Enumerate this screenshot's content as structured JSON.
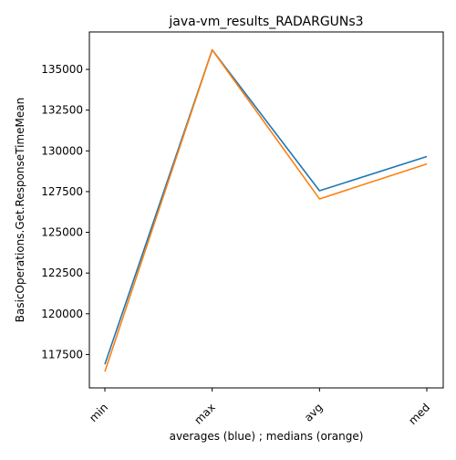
{
  "chart_data": {
    "type": "line",
    "title": "java-vm_results_RADARGUNs3",
    "xlabel": "averages (blue) ; medians (orange)",
    "ylabel": "BasicOperations.Get.ResponseTimeMean",
    "categories": [
      "min",
      "max",
      "avg",
      "med"
    ],
    "series": [
      {
        "color": "#1f77b4",
        "values": [
          116900,
          136200,
          127550,
          129650
        ]
      },
      {
        "color": "#ff7f0e",
        "values": [
          116450,
          136200,
          127050,
          129200
        ]
      }
    ],
    "ylim": [
      115450,
      137300
    ],
    "yticks": [
      117500,
      120000,
      122500,
      125000,
      127500,
      130000,
      132500,
      135000
    ],
    "ytick_labels": [
      "117500",
      "120000",
      "122500",
      "125000",
      "127500",
      "130000",
      "132500",
      "135000"
    ],
    "grid": false,
    "legend": "none"
  }
}
